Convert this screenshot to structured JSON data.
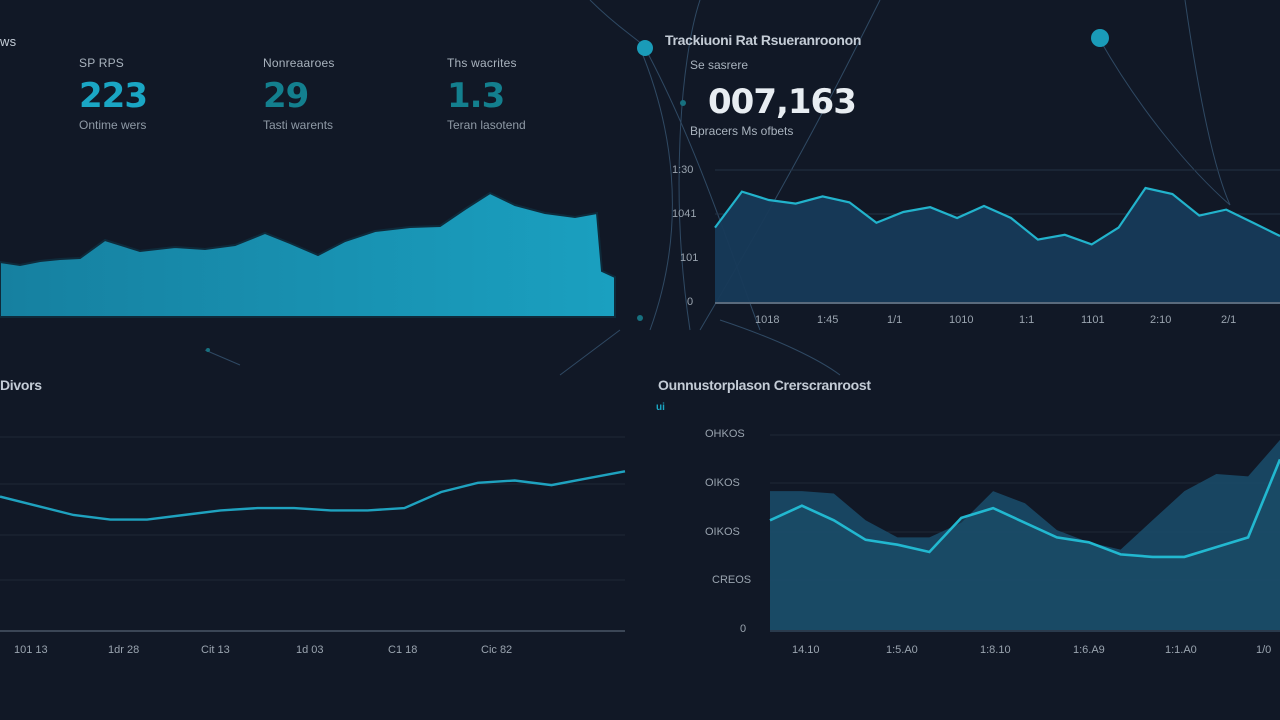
{
  "colors": {
    "background": "#111826",
    "accent_cyan": "#1aa6c4",
    "area_fill_bright": "#1592ae",
    "area_fill_dark": "#173a57",
    "line_cyan": "#22b3cc",
    "gridline": "#222c3a",
    "text_muted": "#9aa4af"
  },
  "top_left": {
    "corner_label": "ws",
    "kpis": [
      {
        "label": "SP RPS",
        "value": "223",
        "sub": "Ontime wers",
        "color": "#1aa6c4"
      },
      {
        "label": "Nonreaaroes",
        "value": "29",
        "sub": "Tasti warents",
        "color": "#137f8e"
      },
      {
        "label": "Ths wacrites",
        "value": "1.3",
        "sub": "Teran lasotend",
        "color": "#137f8e"
      }
    ]
  },
  "top_right": {
    "title": "Trackiuoni Rat Rsueranroonon",
    "subtitle": "Se sasrere",
    "big_value": "007,163",
    "sub_label": "Bpracers Ms ofbets"
  },
  "bottom_left": {
    "title": "Divors"
  },
  "bottom_right": {
    "title": "Ounnustorplason Crerscranroost",
    "legend_marker": "ui"
  },
  "chart_data": [
    {
      "id": "top-left-area",
      "type": "area",
      "title": "",
      "xlabel": "",
      "ylabel": "",
      "grid": false,
      "x": [
        0,
        20,
        40,
        60,
        80,
        105,
        140,
        175,
        205,
        235,
        265,
        290,
        318,
        345,
        375,
        410,
        440,
        465,
        490,
        515,
        545,
        575,
        597,
        602,
        615
      ],
      "values": [
        55,
        52,
        56,
        58,
        59,
        77,
        66,
        70,
        68,
        72,
        84,
        74,
        62,
        76,
        86,
        90,
        91,
        108,
        124,
        112,
        104,
        100,
        104,
        46,
        40
      ],
      "ylim": [
        0,
        140
      ]
    },
    {
      "id": "top-right-area",
      "type": "area",
      "title": "Trackiuoni Rat Rsueranroonon",
      "y_ticks": [
        "1:30",
        "1041",
        "101",
        "0"
      ],
      "x_ticks": [
        "1018",
        "1:45",
        "1/1",
        "1010",
        "1:1",
        "1101",
        "2:10",
        "2/1"
      ],
      "values": [
        62,
        92,
        85,
        82,
        88,
        83,
        66,
        75,
        79,
        70,
        80,
        70,
        52,
        56,
        48,
        62,
        95,
        90,
        72,
        77,
        66,
        55
      ],
      "ylim": [
        0,
        110
      ],
      "grid": true
    },
    {
      "id": "bottom-left-line",
      "type": "line",
      "title": "Divors",
      "x_ticks": [
        "101 13",
        "1dr 28",
        "Cit 13",
        "1d 03",
        "C1 18",
        "Cic 82"
      ],
      "values": [
        58,
        54,
        50,
        48,
        48,
        50,
        52,
        53,
        53,
        52,
        52,
        53,
        60,
        64,
        65,
        63,
        66,
        69
      ],
      "ylim": [
        0,
        100
      ],
      "grid": true
    },
    {
      "id": "bottom-right-area-line",
      "type": "area",
      "title": "Ounnustorplason Crerscranroost",
      "y_ticks": [
        "OHKOS",
        "OIKOS",
        "OIKOS",
        "CREOS",
        "0"
      ],
      "x_ticks": [
        "14.10",
        "1:5.A0",
        "1:8.10",
        "1:6.A9",
        "1:1.A0",
        "1/0"
      ],
      "series": [
        {
          "name": "area",
          "values": [
            57,
            57,
            56,
            45,
            38,
            38,
            44,
            57,
            52,
            41,
            36,
            33,
            45,
            57,
            64,
            63,
            78
          ]
        },
        {
          "name": "line",
          "values": [
            45,
            51,
            45,
            37,
            35,
            32,
            46,
            50,
            44,
            38,
            36,
            31,
            30,
            30,
            34,
            38,
            70
          ]
        }
      ],
      "ylim": [
        0,
        80
      ],
      "grid": true
    }
  ]
}
